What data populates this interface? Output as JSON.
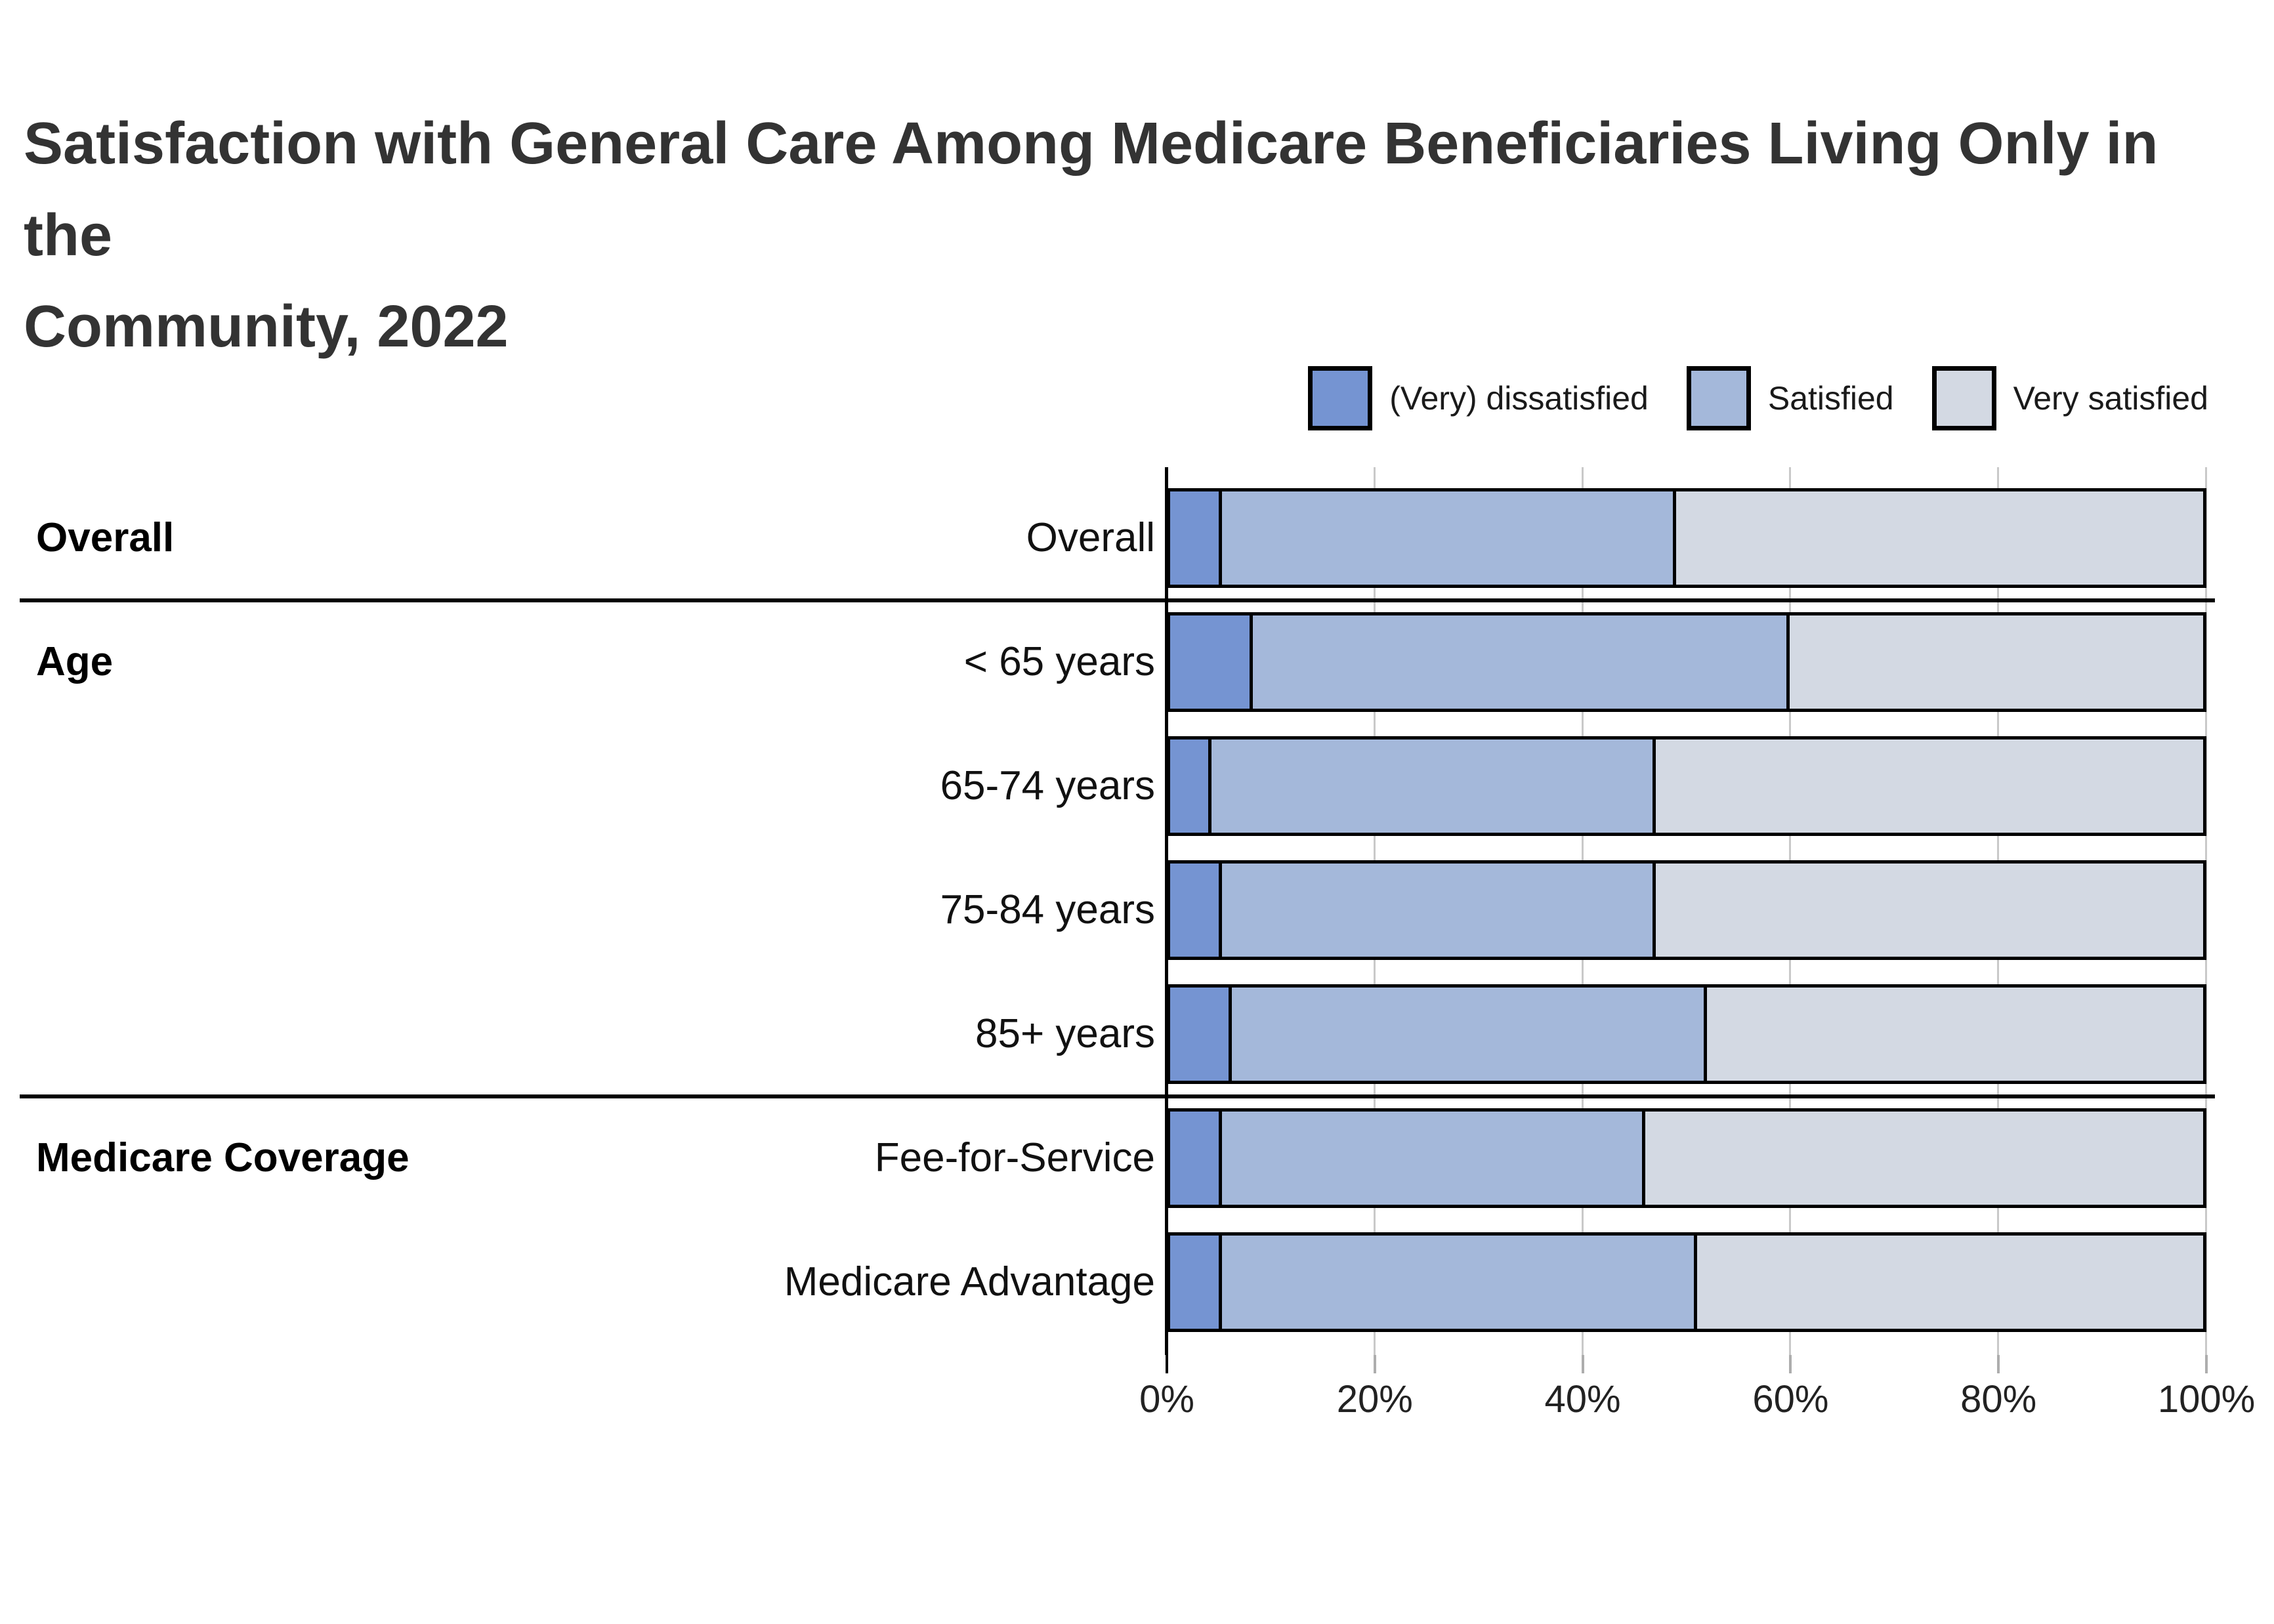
{
  "title": {
    "line1": "Satisfaction with General Care Among Medicare Beneficiaries Living Only in the",
    "line2": "Community, 2022"
  },
  "legend": [
    {
      "label": "(Very) dissatisfied",
      "color_key": "dissatisfied"
    },
    {
      "label": "Satisfied",
      "color_key": "satisfied"
    },
    {
      "label": "Very satisfied",
      "color_key": "very_satisfied"
    }
  ],
  "colors": {
    "dissatisfied": "#7594D2",
    "satisfied": "#A4B8DA",
    "very_satisfied": "#D3D9E3",
    "bar_border": "#000000",
    "gridline": "#C9C9C9",
    "tick": "#ADADAD",
    "axis": "#000000",
    "separator": "#000000",
    "title_text": "#333333",
    "label_text": "#111111"
  },
  "chart_data": {
    "type": "bar",
    "stacked": true,
    "orientation": "horizontal",
    "title": "Satisfaction with General Care Among Medicare Beneficiaries Living Only in the Community, 2022",
    "series_names": [
      "(Very) dissatisfied",
      "Satisfied",
      "Very satisfied"
    ],
    "rows": [
      {
        "group": "Overall",
        "label": "Overall",
        "values": [
          5,
          44,
          51
        ]
      },
      {
        "group": "Age",
        "label": "< 65 years",
        "values": [
          8,
          52,
          40
        ]
      },
      {
        "group": "Age",
        "label": "65-74 years",
        "values": [
          4,
          43,
          53
        ]
      },
      {
        "group": "Age",
        "label": "75-84 years",
        "values": [
          5,
          42,
          53
        ]
      },
      {
        "group": "Age",
        "label": "85+ years",
        "values": [
          6,
          46,
          48
        ]
      },
      {
        "group": "Medicare Coverage",
        "label": "Fee-for-Service",
        "values": [
          5,
          41,
          54
        ]
      },
      {
        "group": "Medicare Coverage",
        "label": "Medicare Advantage",
        "values": [
          5,
          46,
          49
        ]
      }
    ],
    "xlim": [
      0,
      100
    ],
    "x_tick_labels": [
      "0%",
      "20%",
      "40%",
      "60%",
      "80%",
      "100%"
    ],
    "xlabel": "",
    "ylabel": "",
    "grid": "vertical",
    "legend_position": "top-right",
    "units": "percent"
  }
}
